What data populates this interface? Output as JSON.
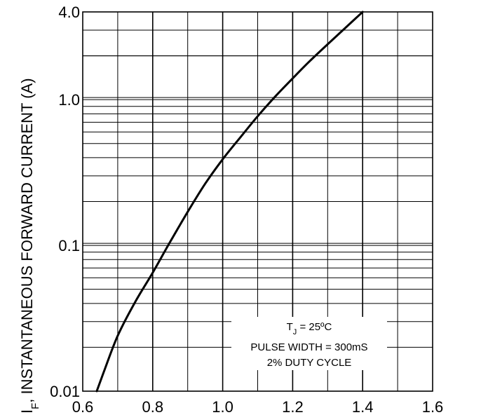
{
  "chart_data": {
    "type": "line",
    "title": "",
    "xlabel": "",
    "ylabel": "I_F, INSTANTANEOUS FORWARD CURRENT (A)",
    "ylabel_symbol": "I",
    "ylabel_subscript": "F",
    "ylabel_text": ", INSTANTANEOUS FORWARD CURRENT (A)",
    "y_scale": "log",
    "xlim": [
      0.6,
      1.6
    ],
    "ylim": [
      0.01,
      4.0
    ],
    "x_ticks": [
      0.6,
      0.8,
      1.0,
      1.2,
      1.4,
      1.6
    ],
    "x_tick_labels": [
      "0.6",
      "0.8",
      "1.0",
      "1.2",
      "1.4",
      "1.6"
    ],
    "y_ticks": [
      0.01,
      0.1,
      1.0,
      4.0
    ],
    "y_tick_labels": [
      "0.01",
      "0.1",
      "1.0",
      "4.0"
    ],
    "grid": true,
    "series": [
      {
        "x": [
          0.64,
          0.66,
          0.7,
          0.75,
          0.8,
          0.85,
          0.9,
          0.95,
          1.0,
          1.05,
          1.1,
          1.15,
          1.2,
          1.25,
          1.3,
          1.35,
          1.4
        ],
        "y": [
          0.01,
          0.0135,
          0.024,
          0.041,
          0.065,
          0.106,
          0.17,
          0.265,
          0.39,
          0.55,
          0.77,
          1.05,
          1.4,
          1.85,
          2.4,
          3.1,
          4.0
        ]
      }
    ],
    "annotation": {
      "line1_prefix": "T",
      "line1_subscript": "J",
      "line1_suffix": " = 25ºC",
      "line2": "PULSE WIDTH = 300mS",
      "line3": "2% DUTY CYCLE"
    }
  }
}
